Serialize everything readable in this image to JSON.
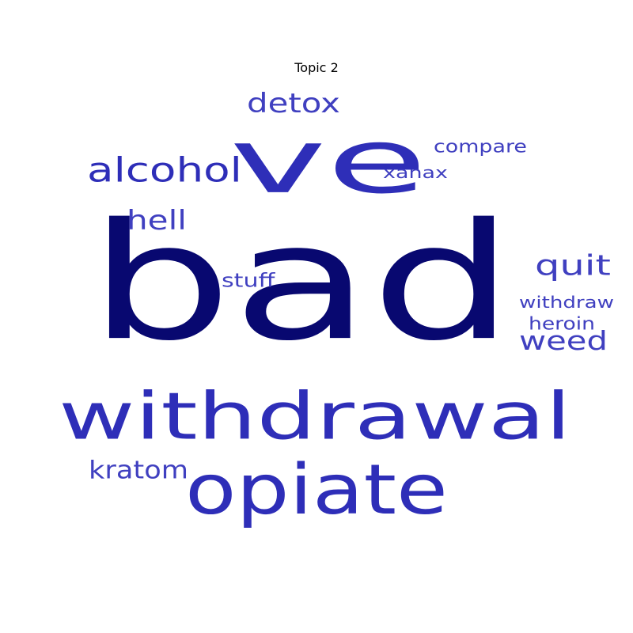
{
  "title": "Topic 2",
  "colors": {
    "dark": "#080870",
    "mid": "#2e2eb8",
    "light": "#4040c0"
  },
  "words": [
    {
      "text": "bad",
      "shade": "dark"
    },
    {
      "text": "ve",
      "shade": "mid"
    },
    {
      "text": "withdrawal",
      "shade": "mid"
    },
    {
      "text": "opiate",
      "shade": "mid"
    },
    {
      "text": "alcohol",
      "shade": "mid"
    },
    {
      "text": "detox",
      "shade": "light"
    },
    {
      "text": "quit",
      "shade": "light"
    },
    {
      "text": "hell",
      "shade": "light"
    },
    {
      "text": "weed",
      "shade": "light"
    },
    {
      "text": "kratom",
      "shade": "light"
    },
    {
      "text": "compare",
      "shade": "light"
    },
    {
      "text": "xanax",
      "shade": "light"
    },
    {
      "text": "stuff",
      "shade": "light"
    },
    {
      "text": "withdraw",
      "shade": "light"
    },
    {
      "text": "heroin",
      "shade": "light"
    }
  ]
}
